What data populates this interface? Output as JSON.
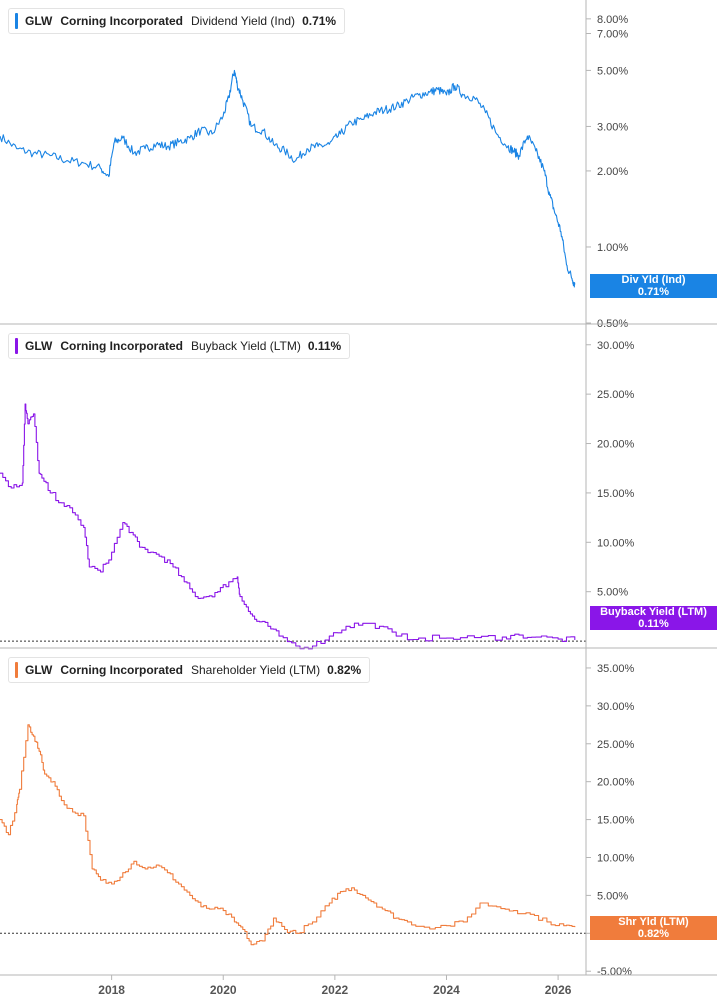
{
  "panels": [
    {
      "ticker": "GLW",
      "company": "Corning Incorporated",
      "metric": "Dividend Yield (Ind)",
      "value": "0.71%",
      "color": "#1a84e4",
      "tag_line1": "Div Yld (Ind)",
      "tag_line2": "0.71%"
    },
    {
      "ticker": "GLW",
      "company": "Corning Incorporated",
      "metric": "Buyback Yield (LTM)",
      "value": "0.11%",
      "color": "#8a16e8",
      "tag_line1": "Buyback Yield (LTM)",
      "tag_line2": "0.11%"
    },
    {
      "ticker": "GLW",
      "company": "Corning Incorporated",
      "metric": "Shareholder Yield (LTM)",
      "value": "0.82%",
      "color": "#f07c3c",
      "tag_line1": "Shr Yld (LTM)",
      "tag_line2": "0.82%"
    }
  ],
  "chart_data": [
    {
      "type": "line",
      "scale": "log",
      "ylim": [
        0.5,
        9.5
      ],
      "xlim": [
        2016.0,
        2026.5
      ],
      "yticks": [
        0.5,
        1,
        2,
        3,
        5,
        7,
        8
      ],
      "ytick_labels": [
        "0.50%",
        "1.00%",
        "2.00%",
        "3.00%",
        "5.00%",
        "7.00%",
        "8.00%"
      ],
      "series": [
        {
          "name": "Dividend Yield (Ind)",
          "x": [
            2016.0,
            2016.3,
            2016.6,
            2016.9,
            2017.2,
            2017.5,
            2017.8,
            2017.95,
            2018.05,
            2018.2,
            2018.4,
            2018.6,
            2018.8,
            2019.0,
            2019.2,
            2019.4,
            2019.6,
            2019.8,
            2020.0,
            2020.1,
            2020.2,
            2020.25,
            2020.35,
            2020.5,
            2020.7,
            2020.9,
            2021.1,
            2021.3,
            2021.5,
            2021.7,
            2021.9,
            2022.1,
            2022.3,
            2022.5,
            2022.7,
            2022.9,
            2023.1,
            2023.3,
            2023.5,
            2023.7,
            2023.85,
            2024.0,
            2024.15,
            2024.3,
            2024.5,
            2024.7,
            2024.9,
            2025.1,
            2025.2,
            2025.3,
            2025.45,
            2025.6,
            2025.75,
            2025.85,
            2025.95,
            2026.05,
            2026.15,
            2026.25,
            2026.3
          ],
          "y": [
            2.75,
            2.45,
            2.35,
            2.3,
            2.2,
            2.15,
            2.05,
            1.9,
            2.6,
            2.7,
            2.35,
            2.45,
            2.55,
            2.5,
            2.6,
            2.7,
            2.9,
            2.8,
            3.3,
            3.9,
            5.0,
            4.4,
            3.8,
            3.0,
            2.9,
            2.55,
            2.4,
            2.2,
            2.45,
            2.5,
            2.55,
            2.8,
            3.1,
            3.2,
            3.4,
            3.5,
            3.6,
            3.8,
            4.0,
            4.1,
            4.2,
            4.0,
            4.35,
            4.0,
            3.9,
            3.4,
            2.8,
            2.5,
            2.4,
            2.3,
            2.75,
            2.4,
            2.0,
            1.6,
            1.35,
            1.15,
            0.85,
            0.75,
            0.71
          ]
        }
      ]
    },
    {
      "type": "line",
      "scale": "linear",
      "ylim": [
        -0.6,
        32
      ],
      "xlim": [
        2016.0,
        2026.5
      ],
      "yticks": [
        5,
        10,
        15,
        20,
        25,
        30
      ],
      "ytick_labels": [
        "5.00%",
        "10.00%",
        "15.00%",
        "20.00%",
        "25.00%",
        "30.00%"
      ],
      "reference_line": 0,
      "series": [
        {
          "name": "Buyback Yield (LTM)",
          "x": [
            2016.0,
            2016.2,
            2016.4,
            2016.45,
            2016.5,
            2016.6,
            2016.7,
            2016.75,
            2016.9,
            2017.1,
            2017.3,
            2017.5,
            2017.6,
            2017.8,
            2018.0,
            2018.2,
            2018.35,
            2018.5,
            2018.7,
            2018.9,
            2019.1,
            2019.3,
            2019.5,
            2019.7,
            2019.9,
            2020.1,
            2020.25,
            2020.3,
            2020.45,
            2020.6,
            2020.8,
            2021.0,
            2021.3,
            2021.6,
            2021.9,
            2022.2,
            2022.5,
            2022.8,
            2023.1,
            2023.5,
            2024.0,
            2024.5,
            2025.0,
            2025.3,
            2025.6,
            2026.0,
            2026.3
          ],
          "y": [
            17.0,
            15.5,
            16.0,
            24.0,
            22.0,
            23.0,
            17.0,
            16.5,
            15.0,
            14.0,
            13.0,
            11.5,
            7.5,
            7.0,
            9.0,
            12.0,
            11.0,
            9.5,
            9.0,
            8.5,
            7.5,
            6.0,
            4.5,
            4.5,
            5.0,
            6.0,
            6.5,
            4.5,
            3.0,
            2.0,
            1.5,
            0.5,
            -0.5,
            -0.5,
            0.5,
            1.5,
            1.8,
            1.5,
            0.5,
            0.3,
            0.3,
            0.35,
            0.4,
            0.6,
            0.4,
            0.2,
            0.11
          ]
        }
      ]
    },
    {
      "type": "line",
      "scale": "linear",
      "ylim": [
        -5.5,
        37.5
      ],
      "xlim": [
        2016.0,
        2026.5
      ],
      "yticks": [
        -5,
        0,
        5,
        10,
        15,
        20,
        25,
        30,
        35
      ],
      "ytick_labels": [
        "-5.00%",
        "",
        "5.00%",
        "10.00%",
        "15.00%",
        "20.00%",
        "25.00%",
        "30.00%",
        "35.00%"
      ],
      "reference_line": 0,
      "series": [
        {
          "name": "Shareholder Yield (LTM)",
          "x": [
            2016.0,
            2016.15,
            2016.3,
            2016.35,
            2016.5,
            2016.6,
            2016.7,
            2016.8,
            2016.95,
            2017.1,
            2017.3,
            2017.5,
            2017.65,
            2017.8,
            2018.0,
            2018.2,
            2018.4,
            2018.6,
            2018.8,
            2019.0,
            2019.2,
            2019.4,
            2019.6,
            2019.8,
            2020.0,
            2020.2,
            2020.35,
            2020.5,
            2020.7,
            2020.9,
            2021.1,
            2021.3,
            2021.6,
            2021.9,
            2022.1,
            2022.3,
            2022.5,
            2022.7,
            2022.9,
            2023.1,
            2023.3,
            2023.6,
            2024.0,
            2024.3,
            2024.6,
            2024.9,
            2025.2,
            2025.5,
            2025.8,
            2026.1,
            2026.3
          ],
          "y": [
            15.0,
            13.0,
            17.0,
            19.0,
            27.5,
            26.0,
            24.0,
            21.0,
            20.0,
            17.5,
            16.0,
            15.5,
            8.5,
            7.0,
            6.5,
            8.0,
            9.5,
            8.5,
            9.0,
            8.0,
            6.5,
            5.0,
            3.5,
            3.2,
            3.0,
            1.5,
            0.5,
            -1.5,
            -1.0,
            2.0,
            0.5,
            0.0,
            1.5,
            4.0,
            5.5,
            6.0,
            5.0,
            4.0,
            3.0,
            2.0,
            1.5,
            0.8,
            1.0,
            1.5,
            4.0,
            3.5,
            3.0,
            2.5,
            1.5,
            1.0,
            0.82
          ]
        }
      ]
    }
  ],
  "x_axis": {
    "ticks": [
      2018,
      2020,
      2022,
      2024,
      2026
    ],
    "tick_labels": [
      "2018",
      "2020",
      "2022",
      "2024",
      "2026"
    ]
  }
}
